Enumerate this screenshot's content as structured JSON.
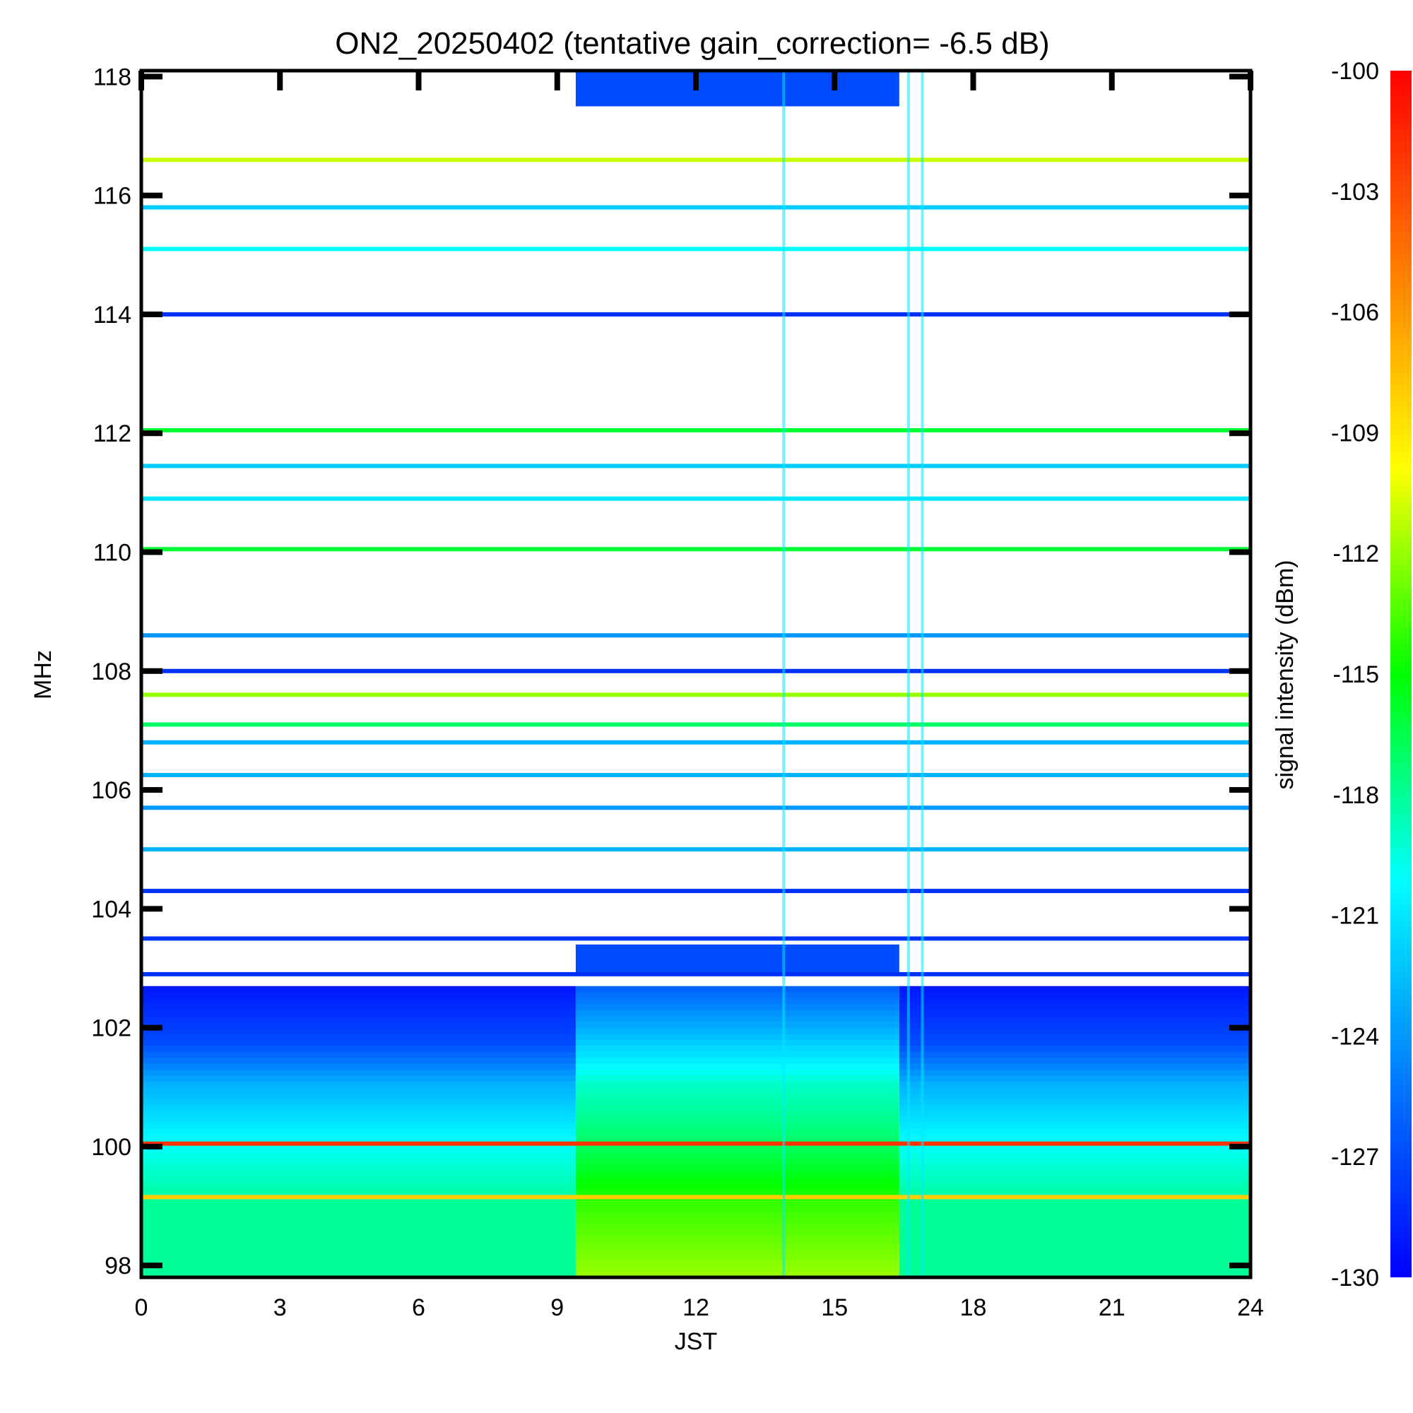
{
  "chart_data": {
    "type": "heatmap",
    "title": "ON2_20250402 (tentative gain_correction= -6.5 dB)",
    "xlabel": "JST",
    "ylabel": "MHz",
    "colorbar_label": "signal intensity (dBm)",
    "xlim": [
      0,
      24
    ],
    "ylim": [
      97.8,
      118.1
    ],
    "x_ticks": [
      "0",
      "3",
      "6",
      "9",
      "12",
      "15",
      "18",
      "21",
      "24"
    ],
    "y_ticks": [
      "98",
      "100",
      "102",
      "104",
      "106",
      "108",
      "110",
      "112",
      "114",
      "116",
      "118"
    ],
    "colorbar_ticks": [
      "-100",
      "-103",
      "-106",
      "-109",
      "-112",
      "-115",
      "-118",
      "-121",
      "-124",
      "-127",
      "-130"
    ],
    "color_range": [
      -130,
      -100
    ],
    "colormap": "rainbow (blue to red)",
    "continuous_lines": [
      {
        "freq": 116.6,
        "level": -111
      },
      {
        "freq": 115.8,
        "level": -122
      },
      {
        "freq": 115.1,
        "level": -120
      },
      {
        "freq": 114.0,
        "level": -128
      },
      {
        "freq": 112.05,
        "level": -116
      },
      {
        "freq": 111.45,
        "level": -122
      },
      {
        "freq": 110.9,
        "level": -121
      },
      {
        "freq": 110.05,
        "level": -116
      },
      {
        "freq": 108.6,
        "level": -124
      },
      {
        "freq": 108.0,
        "level": -128
      },
      {
        "freq": 107.6,
        "level": -112
      },
      {
        "freq": 107.1,
        "level": -117
      },
      {
        "freq": 106.8,
        "level": -123
      },
      {
        "freq": 106.25,
        "level": -123
      },
      {
        "freq": 105.7,
        "level": -124
      },
      {
        "freq": 105.0,
        "level": -123
      },
      {
        "freq": 104.3,
        "level": -128
      },
      {
        "freq": 103.5,
        "level": -128
      },
      {
        "freq": 102.9,
        "level": -128
      },
      {
        "freq": 100.05,
        "level": -102
      },
      {
        "freq": 99.15,
        "level": -108
      }
    ],
    "daytime_block": {
      "start": 9.4,
      "end": 16.4
    },
    "vertical_streaks": [
      13.9,
      16.6,
      16.9
    ],
    "background_profile": [
      {
        "freq": 97.8,
        "night": -118,
        "day": -112
      },
      {
        "freq": 99.0,
        "night": -118,
        "day": -114
      },
      {
        "freq": 100.0,
        "night": -120,
        "day": -117
      },
      {
        "freq": 101.0,
        "night": -123,
        "day": -119
      },
      {
        "freq": 101.7,
        "night": -127,
        "day": -122
      },
      {
        "freq": 102.6,
        "night": -129,
        "day": -126
      }
    ]
  }
}
